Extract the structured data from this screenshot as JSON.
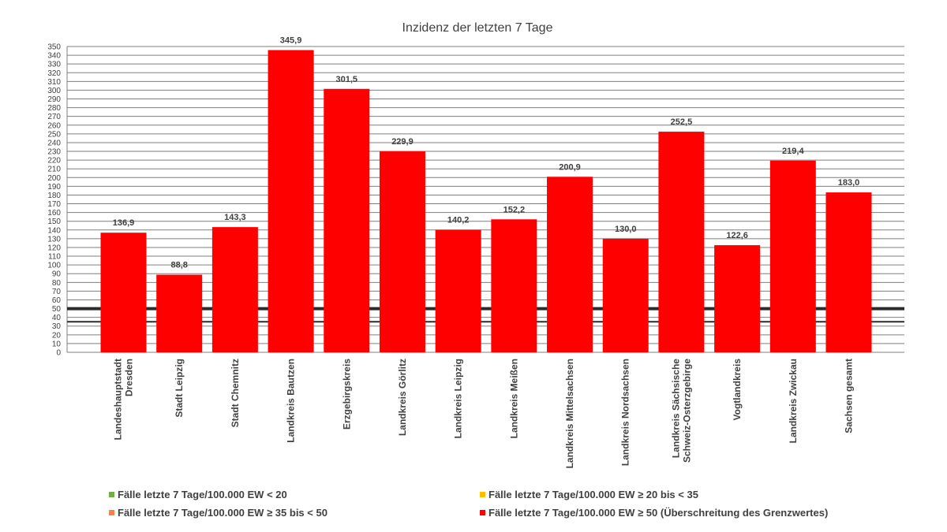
{
  "chart_data": {
    "type": "bar",
    "title": "Inzidenz der letzten 7 Tage",
    "categories": [
      [
        "Landeshauptstadt",
        "Dresden"
      ],
      [
        "Stadt Leipzig"
      ],
      [
        "Stadt Chemnitz"
      ],
      [
        "Landkreis Bautzen"
      ],
      [
        "Erzgebirgskreis"
      ],
      [
        "Landkreis Görlitz"
      ],
      [
        "Landkreis Leipzig"
      ],
      [
        "Landkreis Meißen"
      ],
      [
        "Landkreis Mittelsachsen"
      ],
      [
        "Landkreis Nordsachsen"
      ],
      [
        "Landkreis Sächsische",
        "Schweiz-Osterzgebirge"
      ],
      [
        "Vogtlandkreis"
      ],
      [
        "Landkreis Zwickau"
      ],
      [
        "Sachsen gesamt"
      ]
    ],
    "values": [
      136.9,
      88.8,
      143.3,
      345.9,
      301.5,
      229.9,
      140.2,
      152.2,
      200.9,
      130.0,
      252.5,
      122.6,
      219.4,
      183.0
    ],
    "data_labels": [
      "136,9",
      "88,8",
      "143,3",
      "345,9",
      "301,5",
      "229,9",
      "140,2",
      "152,2",
      "200,9",
      "130,0",
      "252,5",
      "122,6",
      "219,4",
      "183,0"
    ],
    "bar_color": "#ff0000",
    "ylim": [
      0,
      350
    ],
    "ytick_step": 10,
    "grid": true,
    "reference_lines": [
      50,
      35
    ],
    "legend_position": "bottom"
  },
  "legend": [
    {
      "label": "Fälle letzte 7 Tage/100.000 EW < 20",
      "color": "#70ad47"
    },
    {
      "label": "Fälle letzte 7 Tage/100.000 EW ≥ 20 bis < 35",
      "color": "#ffc000"
    },
    {
      "label": "Fälle letzte 7 Tage/100.000 EW ≥ 35 bis < 50",
      "color": "#f4854a"
    },
    {
      "label": "Fälle letzte 7 Tage/100.000 EW ≥ 50 (Überschreitung des Grenzwertes)",
      "color": "#ff0000"
    }
  ]
}
